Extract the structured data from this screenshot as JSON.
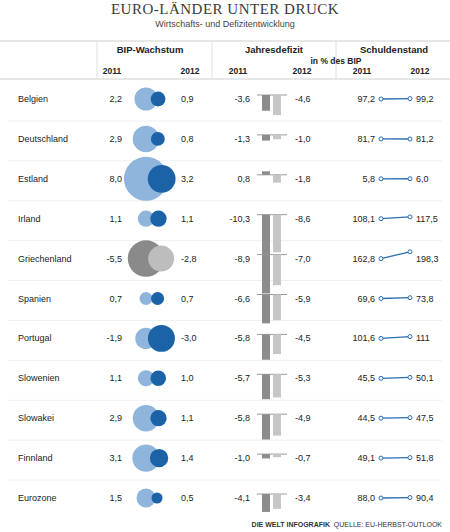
{
  "chart_data": {
    "type": "table",
    "title": "EURO-LÄNDER UNTER DRUCK",
    "subtitle": "Wirtschafts- und Defizitentwicklung",
    "unit": "in % des BIP",
    "categories": [
      "Belgien",
      "Deutschland",
      "Estland",
      "Irland",
      "Griechenland",
      "Spanien",
      "Portugal",
      "Slowenien",
      "Slowakei",
      "Finnland",
      "Eurozone"
    ],
    "groups": [
      {
        "name": "BIP-Wachstum",
        "type": "bubble",
        "series": [
          {
            "name": "2011",
            "colors": [
              "#8fb5dd",
              "#8fb5dd",
              "#8fb5dd",
              "#8fb5dd",
              "#8a8a8a",
              "#8fb5dd",
              "#8fb5dd",
              "#8fb5dd",
              "#8fb5dd",
              "#8fb5dd",
              "#8fb5dd"
            ],
            "values": [
              2.2,
              2.9,
              8.0,
              1.1,
              -5.5,
              0.7,
              -1.9,
              1.1,
              2.9,
              3.1,
              1.5
            ],
            "value_labels": [
              "2,2",
              "2,9",
              "8,0",
              "1,1",
              "-5,5",
              "0,7",
              "-1,9",
              "1,1",
              "2,9",
              "3,1",
              "1,5"
            ]
          },
          {
            "name": "2012",
            "colors": [
              "#1b62a7",
              "#1b62a7",
              "#1b62a7",
              "#1b62a7",
              "#bdbdbd",
              "#1b62a7",
              "#1b62a7",
              "#1b62a7",
              "#1b62a7",
              "#1b62a7",
              "#1b62a7"
            ],
            "values": [
              0.9,
              0.8,
              3.2,
              1.1,
              -2.8,
              0.7,
              -3.0,
              1.0,
              1.1,
              1.4,
              0.5
            ],
            "value_labels": [
              "0,9",
              "0,8",
              "3,2",
              "1,1",
              "-2,8",
              "0,7",
              "-3,0",
              "1,0",
              "1,1",
              "1,4",
              "0,5"
            ]
          }
        ]
      },
      {
        "name": "Jahresdefizit",
        "type": "bar",
        "series": [
          {
            "name": "2011",
            "color": "#8c8c8c",
            "values": [
              -3.6,
              -1.3,
              0.8,
              -10.3,
              -8.9,
              -6.6,
              -5.8,
              -5.7,
              -5.8,
              -1.0,
              -4.1
            ],
            "value_labels": [
              "-3,6",
              "-1,3",
              "0,8",
              "-10,3",
              "-8,9",
              "-6,6",
              "-5,8",
              "-5,7",
              "-5,8",
              "-1,0",
              "-4,1"
            ]
          },
          {
            "name": "2012",
            "color": "#c6c6c6",
            "values": [
              -4.6,
              -1.0,
              -1.8,
              -8.6,
              -7.0,
              -5.9,
              -4.5,
              -5.3,
              -4.9,
              -0.7,
              -3.4
            ],
            "value_labels": [
              "-4,6",
              "-1,0",
              "-1,8",
              "-8,6",
              "-7,0",
              "-5,9",
              "-4,5",
              "-5,3",
              "-4,9",
              "-0,7",
              "-3,4"
            ]
          }
        ]
      },
      {
        "name": "Schuldenstand",
        "type": "line",
        "series": [
          {
            "name": "2011",
            "color": "#2a6db0",
            "values": [
              97.2,
              81.7,
              5.8,
              108.1,
              162.8,
              69.6,
              101.6,
              45.5,
              44.5,
              49.1,
              88.0
            ],
            "value_labels": [
              "97,2",
              "81,7",
              "5,8",
              "108,1",
              "162,8",
              "69,6",
              "101,6",
              "45,5",
              "44,5",
              "49,1",
              "88,0"
            ]
          },
          {
            "name": "2012",
            "color": "#2a6db0",
            "values": [
              99.2,
              81.2,
              6.0,
              117.5,
              198.3,
              73.8,
              111,
              50.1,
              47.5,
              51.8,
              90.4
            ],
            "value_labels": [
              "99,2",
              "81,2",
              "6,0",
              "117,5",
              "198,3",
              "73,8",
              "111",
              "50,1",
              "47,5",
              "51,8",
              "90,4"
            ]
          }
        ]
      }
    ],
    "credit": "DIE WELT INFOGRAFIK",
    "source": "QUELLE: EU-HERBST-OUTLOOK"
  }
}
